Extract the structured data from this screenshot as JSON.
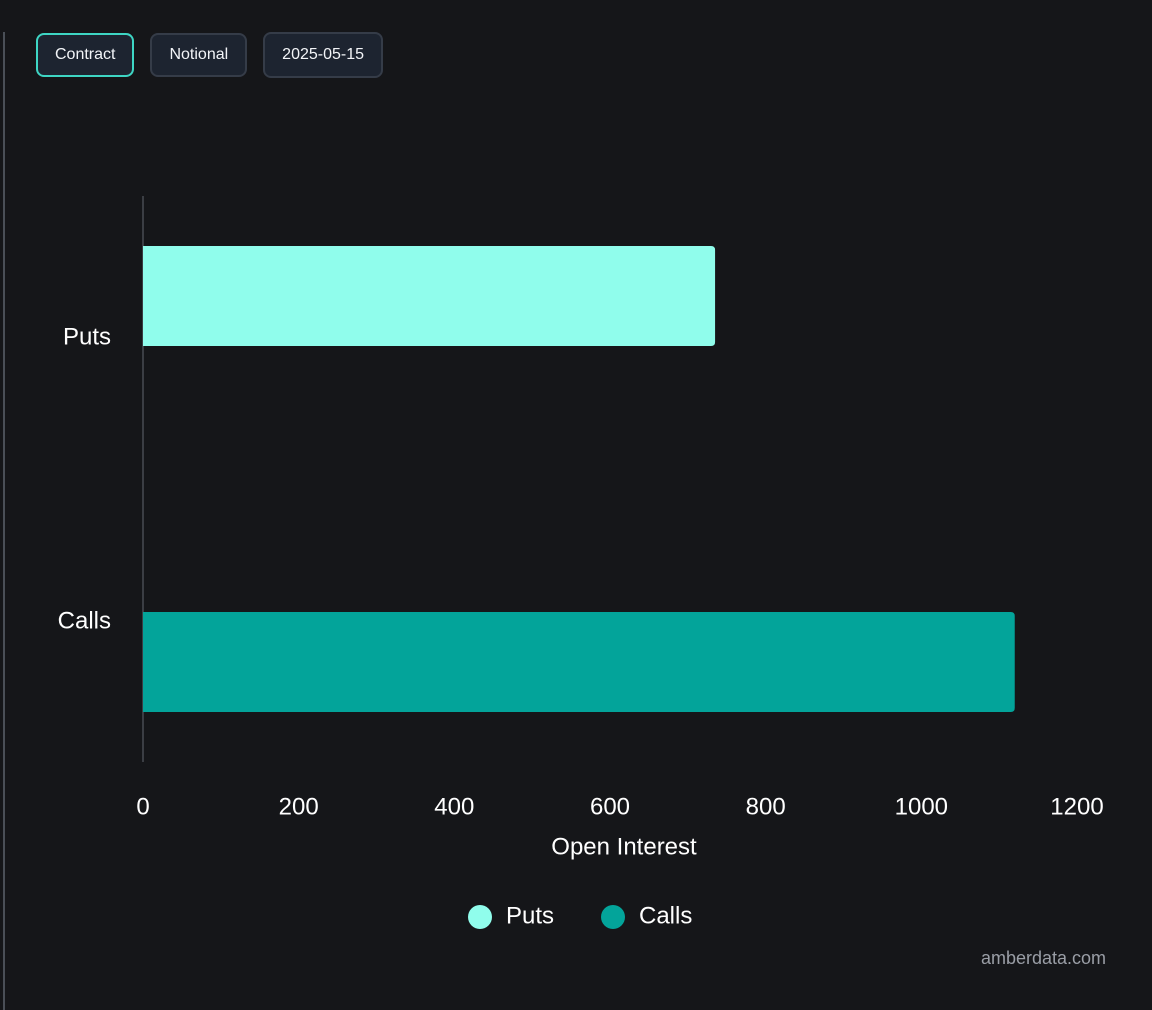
{
  "toolbar": {
    "buttons": [
      {
        "label": "Contract",
        "active": true
      },
      {
        "label": "Notional",
        "active": false
      },
      {
        "label": "2025-05-15",
        "active": false
      }
    ]
  },
  "colors": {
    "background": "#151619",
    "puts": "#90fdec",
    "calls": "#03a49a",
    "active_border": "#3ed6c4",
    "text": "#ffffff",
    "watermark": "#9a9ea6"
  },
  "watermark": "amberdata.com",
  "chart_data": {
    "type": "bar",
    "orientation": "horizontal",
    "categories": [
      "Puts",
      "Calls"
    ],
    "values": [
      735,
      1120
    ],
    "series": [
      {
        "name": "Puts",
        "values": [
          735,
          null
        ]
      },
      {
        "name": "Calls",
        "values": [
          null,
          1120
        ]
      }
    ],
    "xlabel": "Open Interest",
    "ylabel": "",
    "xlim": [
      0,
      1200
    ],
    "xticks": [
      0,
      200,
      400,
      600,
      800,
      1000,
      1200
    ],
    "grid": false,
    "legend": {
      "position": "bottom-center",
      "entries": [
        "Puts",
        "Calls"
      ]
    }
  }
}
